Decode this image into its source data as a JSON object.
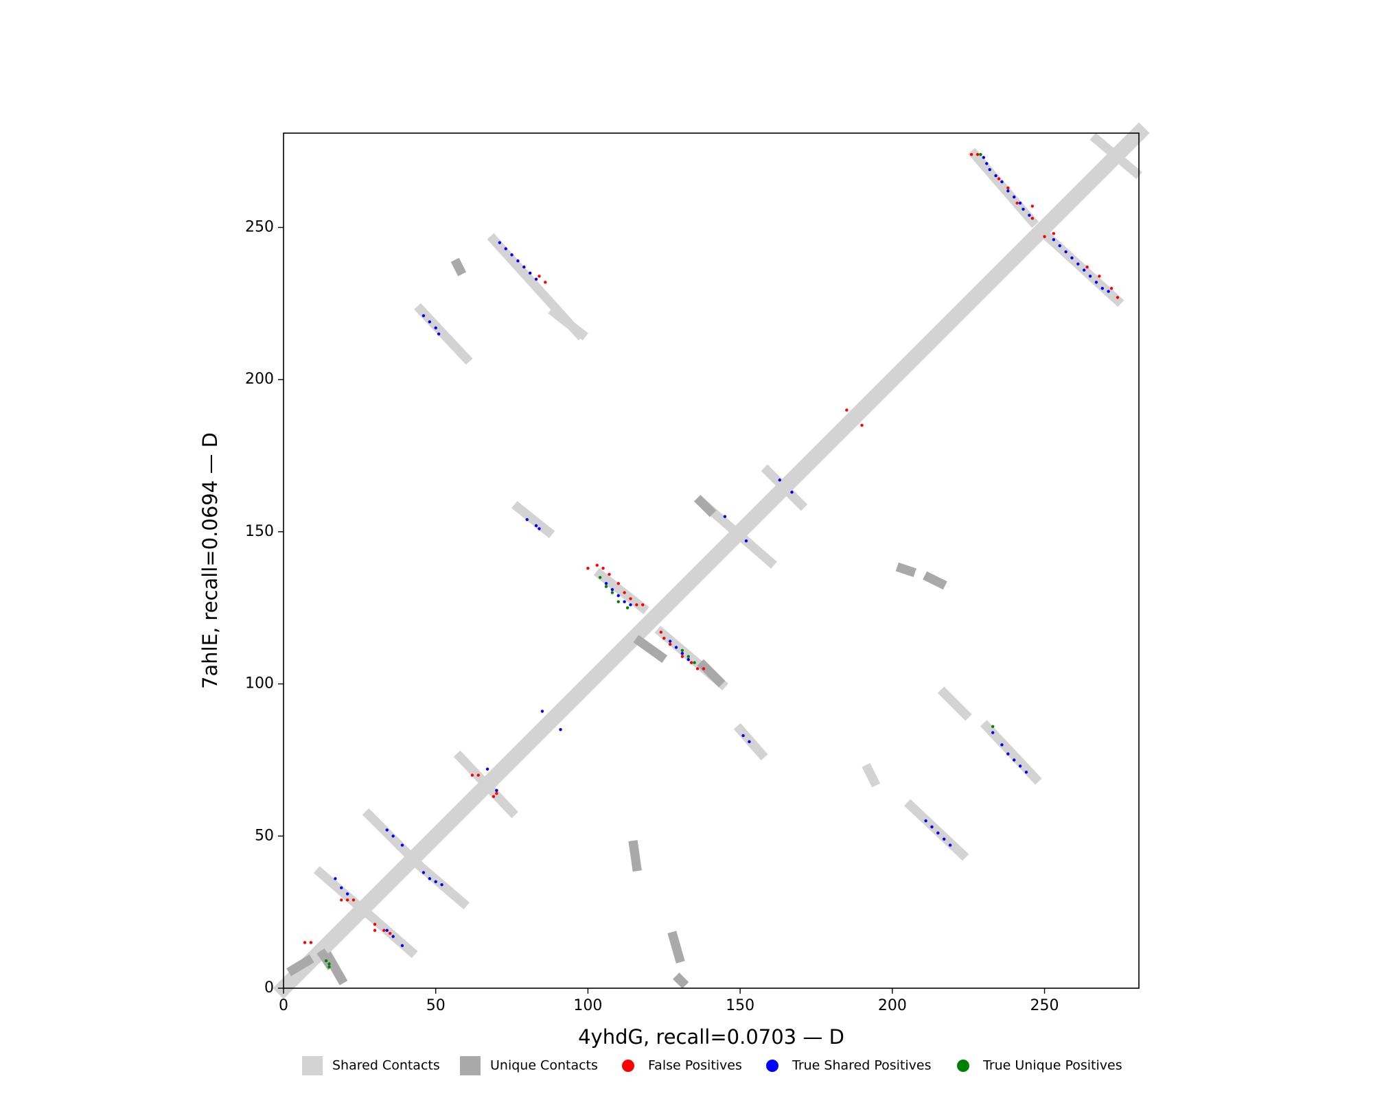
{
  "chart_data": {
    "type": "contact_map",
    "xlabel": "4yhdG, recall=0.0703 — D",
    "ylabel": "7ahlE, recall=0.0694 — D",
    "xlim": [
      0,
      281
    ],
    "ylim": [
      0,
      281
    ],
    "xticks": [
      0,
      50,
      100,
      150,
      200,
      250
    ],
    "yticks": [
      0,
      50,
      100,
      150,
      200,
      250
    ],
    "legend": "bottom",
    "series": [
      {
        "name": "Shared Contacts",
        "color": "#d3d3d3",
        "marker": "square",
        "segments": [
          [
            0,
            0,
            281,
            281
          ],
          [
            69,
            246,
            97,
            215
          ],
          [
            45,
            223,
            60,
            207
          ],
          [
            89,
            222,
            98,
            215
          ],
          [
            227,
            274,
            246,
            252
          ],
          [
            251,
            247,
            274,
            226
          ],
          [
            267,
            279,
            280,
            268
          ],
          [
            77,
            158,
            87,
            150
          ],
          [
            104,
            136,
            118,
            125
          ],
          [
            124,
            117,
            144,
            100
          ],
          [
            137,
            160,
            160,
            140
          ],
          [
            159,
            170,
            170,
            159
          ],
          [
            150,
            85,
            157,
            77
          ],
          [
            217,
            97,
            224,
            90
          ],
          [
            231,
            86,
            247,
            69
          ],
          [
            206,
            60,
            223,
            44
          ],
          [
            58,
            76,
            75,
            58
          ],
          [
            28,
            57,
            44,
            41
          ],
          [
            45,
            40,
            59,
            28
          ],
          [
            12,
            38,
            27,
            25
          ],
          [
            26,
            26,
            42,
            12
          ],
          [
            192,
            72,
            194,
            68
          ]
        ]
      },
      {
        "name": "Unique Contacts",
        "color": "#a9a9a9",
        "marker": "square",
        "segments": [
          [
            15,
            10,
            19,
            3
          ],
          [
            3,
            6,
            8,
            9
          ],
          [
            117,
            114,
            124,
            109
          ],
          [
            138,
            106,
            143,
            101
          ],
          [
            137,
            160,
            140,
            157
          ],
          [
            203,
            138,
            206,
            137
          ],
          [
            212,
            135,
            216,
            133
          ],
          [
            115,
            47,
            116,
            40
          ],
          [
            128,
            17,
            130,
            10
          ],
          [
            130,
            3,
            131,
            2
          ],
          [
            13,
            11,
            15,
            8
          ],
          [
            57,
            238,
            58,
            236
          ]
        ]
      },
      {
        "name": "False Positives",
        "color": "#ff0000",
        "marker": "circle",
        "x": [
          226,
          228,
          235,
          238,
          241,
          246,
          246,
          250,
          253,
          264,
          268,
          272,
          274,
          84,
          86,
          100,
          103,
          105,
          107,
          110,
          112,
          114,
          116,
          118,
          124,
          125,
          127,
          131,
          134,
          136,
          138,
          19,
          21,
          23,
          30,
          30,
          33,
          35,
          7,
          9,
          62,
          64,
          69,
          70,
          185,
          190
        ],
        "y": [
          274,
          274,
          266,
          263,
          258,
          257,
          253,
          247,
          248,
          237,
          234,
          230,
          227,
          234,
          232,
          138,
          139,
          138,
          136,
          133,
          130,
          128,
          126,
          126,
          117,
          115,
          113,
          109,
          107,
          105,
          105,
          29,
          29,
          29,
          21,
          19,
          19,
          18,
          15,
          15,
          70,
          70,
          63,
          64,
          190,
          185
        ]
      },
      {
        "name": "True Shared Positives",
        "color": "#0000ff",
        "marker": "circle",
        "x": [
          230,
          231,
          232,
          234,
          236,
          238,
          240,
          242,
          243,
          245,
          253,
          255,
          257,
          259,
          261,
          263,
          265,
          267,
          269,
          271,
          71,
          73,
          75,
          77,
          79,
          81,
          83,
          46,
          48,
          50,
          51,
          80,
          83,
          84,
          106,
          108,
          110,
          112,
          114,
          127,
          129,
          131,
          133,
          145,
          152,
          163,
          167,
          151,
          153,
          233,
          236,
          238,
          240,
          242,
          244,
          211,
          213,
          215,
          217,
          219,
          34,
          36,
          39,
          46,
          48,
          50,
          52,
          17,
          19,
          21,
          34,
          36,
          39,
          67,
          70,
          85,
          91
        ],
        "y": [
          273,
          271,
          269,
          267,
          265,
          262,
          260,
          258,
          256,
          254,
          246,
          244,
          242,
          240,
          238,
          236,
          234,
          232,
          230,
          229,
          245,
          243,
          241,
          239,
          237,
          235,
          233,
          221,
          219,
          217,
          215,
          154,
          152,
          151,
          133,
          131,
          129,
          127,
          126,
          114,
          112,
          110,
          108,
          155,
          147,
          167,
          163,
          83,
          81,
          84,
          80,
          77,
          75,
          73,
          71,
          55,
          53,
          51,
          49,
          47,
          52,
          50,
          47,
          38,
          36,
          35,
          34,
          36,
          33,
          31,
          19,
          17,
          14,
          72,
          65,
          91,
          85
        ]
      },
      {
        "name": "True Unique Positives",
        "color": "#008000",
        "marker": "circle",
        "x": [
          14,
          15,
          15,
          104,
          106,
          108,
          110,
          113,
          131,
          133,
          135,
          229,
          233
        ],
        "y": [
          9,
          8,
          7,
          135,
          132,
          130,
          127,
          125,
          111,
          109,
          107,
          274,
          86
        ]
      }
    ]
  }
}
